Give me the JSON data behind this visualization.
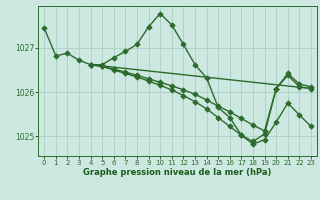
{
  "background_color": "#cce8e0",
  "line_color": "#2d6b2d",
  "grid_color": "#aacfc4",
  "xlabel": "Graphe pression niveau de la mer (hPa)",
  "xlabel_color": "#1a5c1a",
  "ylim": [
    1024.55,
    1027.95
  ],
  "xlim": [
    -0.5,
    23.5
  ],
  "yticks": [
    1025,
    1026,
    1027
  ],
  "xticks": [
    0,
    1,
    2,
    3,
    4,
    5,
    6,
    7,
    8,
    9,
    10,
    11,
    12,
    13,
    14,
    15,
    16,
    17,
    18,
    19,
    20,
    21,
    22,
    23
  ],
  "series": [
    {
      "x": [
        0,
        1,
        2,
        3,
        4,
        5,
        6,
        7,
        8,
        9,
        10,
        11,
        12,
        13,
        14,
        15,
        16,
        17,
        18,
        19,
        20,
        21,
        22,
        23
      ],
      "y": [
        1027.45,
        1026.82,
        1026.88,
        1026.72,
        1026.62,
        1026.62,
        1026.78,
        1026.92,
        1027.08,
        1027.48,
        1027.78,
        1027.52,
        1027.08,
        1026.62,
        1026.32,
        1025.65,
        1025.42,
        1025.02,
        1024.88,
        1025.05,
        1026.08,
        1026.38,
        1026.12,
        1026.08
      ],
      "marker": true
    },
    {
      "x": [
        4,
        5,
        6,
        7,
        8,
        9,
        10,
        11,
        12,
        13,
        14,
        15,
        16,
        17,
        18,
        19,
        20,
        21,
        22,
        23
      ],
      "y": [
        1026.62,
        1026.58,
        1026.52,
        1026.45,
        1026.38,
        1026.3,
        1026.22,
        1026.14,
        1026.05,
        1025.95,
        1025.82,
        1025.68,
        1025.55,
        1025.4,
        1025.25,
        1025.12,
        1026.08,
        1026.42,
        1026.18,
        1026.12
      ],
      "marker": true
    },
    {
      "x": [
        4,
        5,
        6,
        7,
        8,
        9,
        10,
        11,
        12,
        13,
        14,
        15,
        16,
        17,
        18,
        19,
        20,
        21,
        22,
        23
      ],
      "y": [
        1026.62,
        1026.58,
        1026.5,
        1026.42,
        1026.34,
        1026.25,
        1026.15,
        1026.05,
        1025.92,
        1025.78,
        1025.62,
        1025.42,
        1025.22,
        1025.02,
        1024.82,
        1024.92,
        1025.32,
        1025.75,
        1025.48,
        1025.22
      ],
      "marker": true
    },
    {
      "x": [
        4,
        23
      ],
      "y": [
        1026.62,
        1026.08
      ],
      "marker": false
    }
  ],
  "marker_style": "D",
  "markersize": 2.8,
  "linewidth": 1.0
}
